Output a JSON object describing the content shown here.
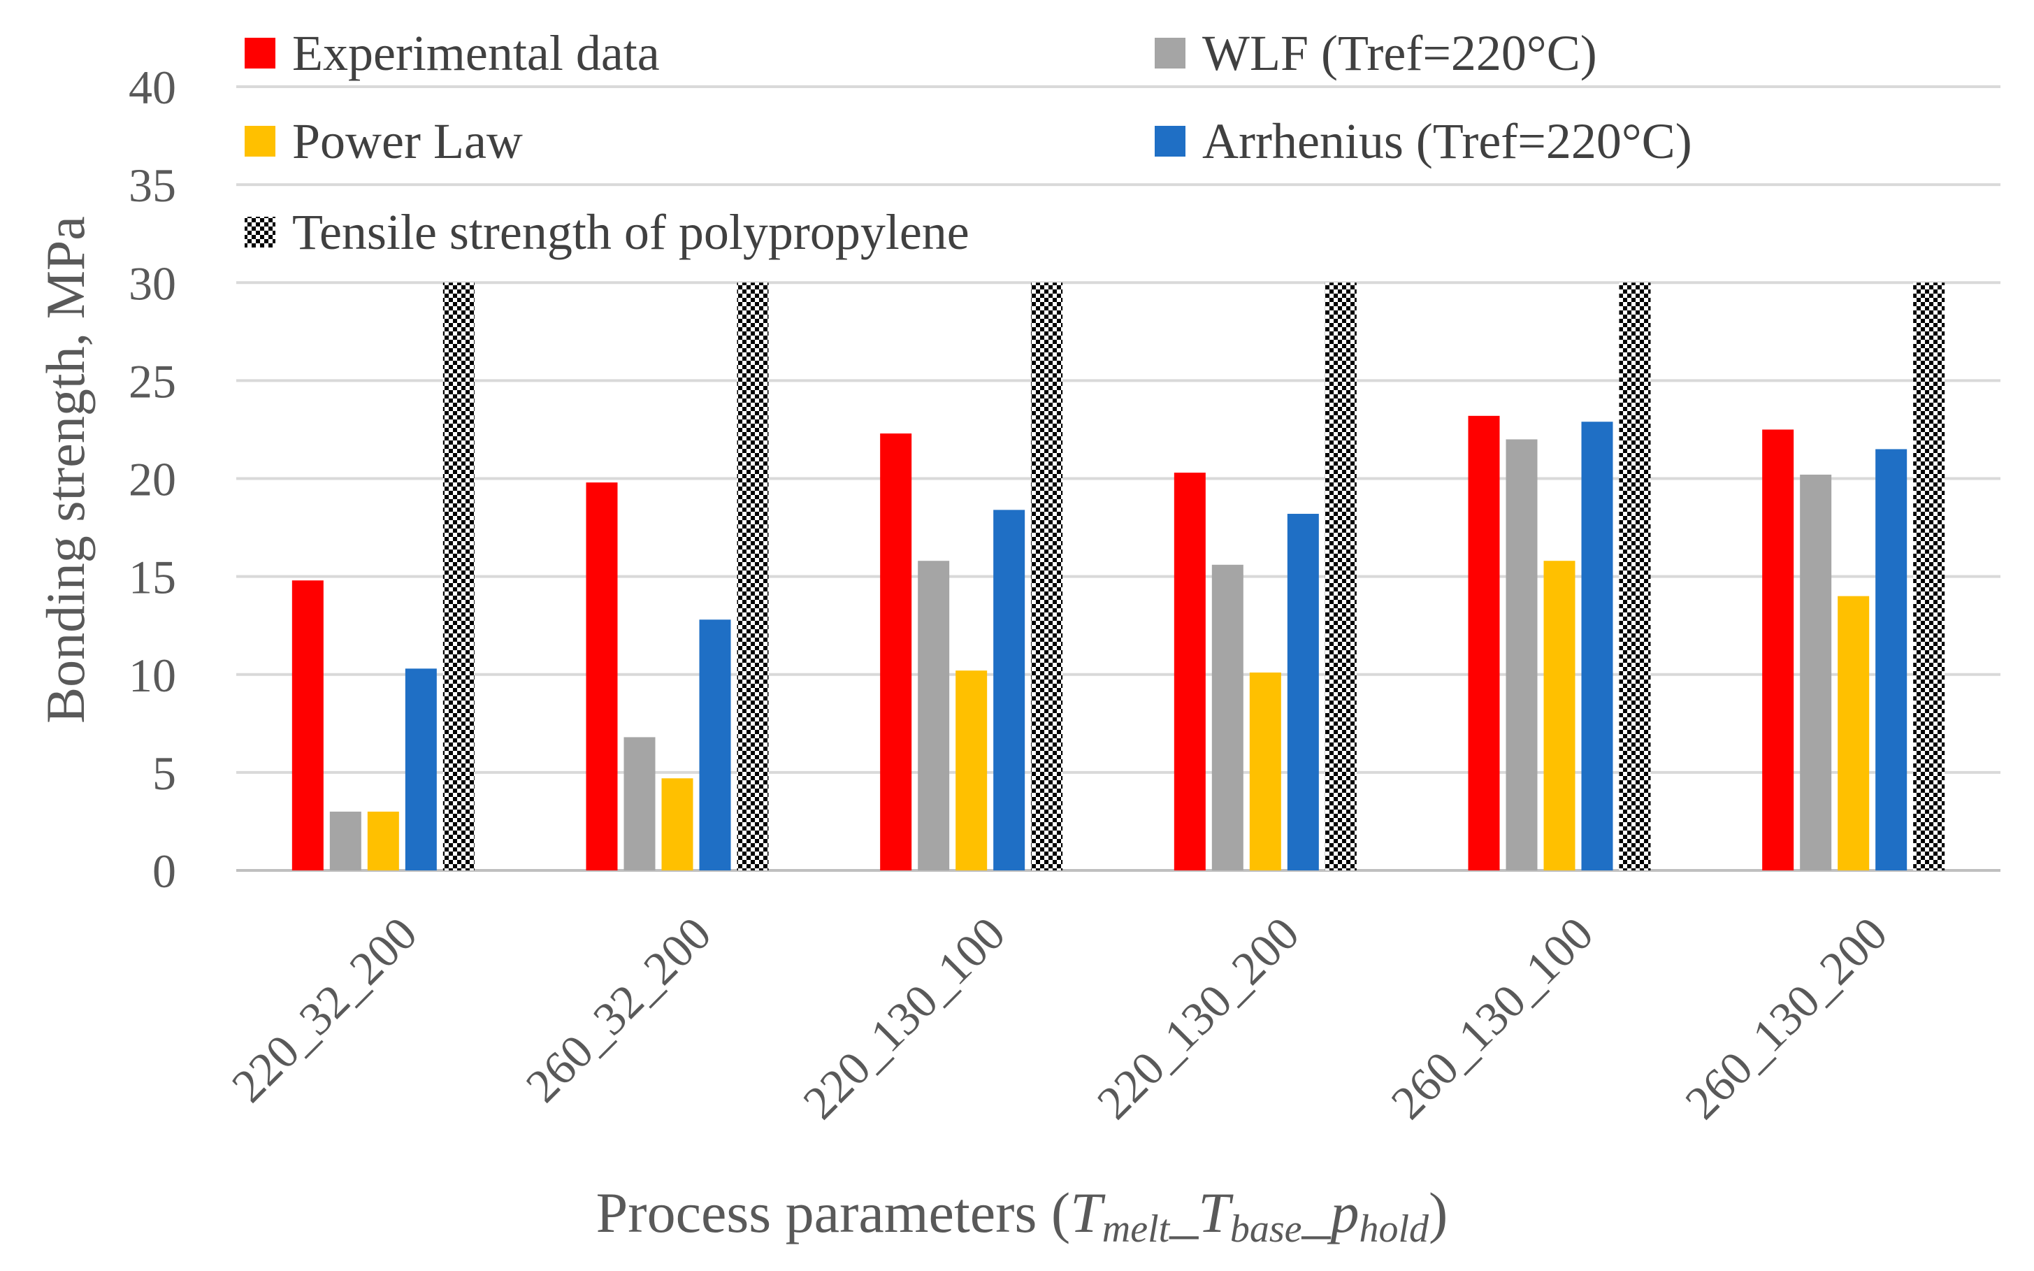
{
  "chart_data": {
    "type": "bar",
    "title": "",
    "xlabel": {
      "prefix": "Process parameters (",
      "t1": "T",
      "s1": "melt",
      "u1": "_",
      "t2": "T",
      "s2": "base",
      "u2": "_",
      "t3": "p",
      "s3": "hold",
      "suffix": ")"
    },
    "ylabel": "Bonding strength, MPa",
    "ylim": [
      0,
      40
    ],
    "yticks": [
      0,
      5,
      10,
      15,
      20,
      25,
      30,
      35,
      40
    ],
    "grid": true,
    "legend_position": "top",
    "categories": [
      "220_32_200",
      "260_32_200",
      "220_130_100",
      "220_130_200",
      "260_130_100",
      "260_130_200"
    ],
    "series": [
      {
        "name": "Experimental data",
        "color": "#FF0000",
        "pattern": "solid",
        "values": [
          14.8,
          19.8,
          22.3,
          20.3,
          23.2,
          22.5
        ]
      },
      {
        "name": "WLF (Tref=220°C)",
        "color": "#A5A5A5",
        "pattern": "solid",
        "values": [
          3.0,
          6.8,
          15.8,
          15.6,
          22.0,
          20.2
        ]
      },
      {
        "name": "Power Law",
        "color": "#FFC000",
        "pattern": "solid",
        "values": [
          3.0,
          4.7,
          10.2,
          10.1,
          15.8,
          14.0
        ]
      },
      {
        "name": "Arrhenius (Tref=220°C)",
        "color": "#1F6FC5",
        "pattern": "solid",
        "values": [
          10.3,
          12.8,
          18.4,
          18.2,
          22.9,
          21.5
        ]
      },
      {
        "name": "Tensile strength of polypropylene",
        "color": "#000000",
        "pattern": "checker",
        "values": [
          30,
          30,
          30,
          30,
          30,
          30
        ]
      }
    ]
  }
}
